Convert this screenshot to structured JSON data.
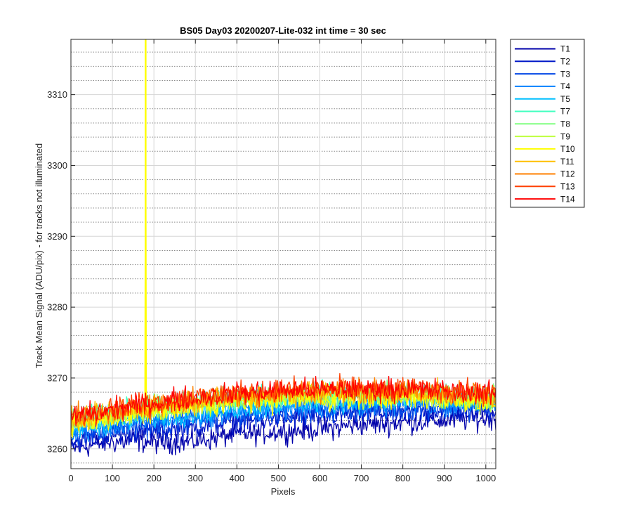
{
  "chart_data": {
    "type": "line",
    "title": "BS05 Day03 20200207-Lite-032 int time = 30 sec",
    "xlabel": "Pixels",
    "ylabel": "Track Mean Signal (ADU/pix) - for tracks not illuminated",
    "xlim": [
      0,
      1024
    ],
    "ylim": [
      3257.2,
      3317.8
    ],
    "xticks": [
      0,
      100,
      200,
      300,
      400,
      500,
      600,
      700,
      800,
      900,
      1000
    ],
    "yticks": [
      3260,
      3270,
      3280,
      3290,
      3300,
      3310
    ],
    "minor_grid": "dotted, step 2 on y",
    "grid": true,
    "legend_position": "outside-right-top",
    "x": [
      0,
      32,
      64,
      96,
      128,
      160,
      192,
      224,
      256,
      288,
      320,
      352,
      384,
      416,
      448,
      480,
      512,
      544,
      576,
      608,
      640,
      672,
      704,
      736,
      768,
      800,
      832,
      864,
      896,
      928,
      960,
      992,
      1024
    ],
    "series": [
      {
        "name": "T1",
        "color": "#0000aa",
        "values": [
          3260.0,
          3260.3,
          3260.7,
          3261.0,
          3261.0,
          3261.2,
          3261.0,
          3260.9,
          3261.0,
          3261.0,
          3261.3,
          3261.6,
          3262.0,
          3262.1,
          3262.2,
          3262.4,
          3262.5,
          3262.6,
          3262.7,
          3262.9,
          3263.0,
          3263.3,
          3263.5,
          3263.5,
          3263.6,
          3263.8,
          3263.8,
          3264.0,
          3264.0,
          3264.1,
          3264.2,
          3264.3,
          3264.3
        ]
      },
      {
        "name": "T2",
        "color": "#0018c8",
        "values": [
          3261.0,
          3261.3,
          3261.7,
          3262.0,
          3262.2,
          3262.4,
          3262.5,
          3262.6,
          3262.8,
          3263.0,
          3263.3,
          3263.6,
          3263.9,
          3264.0,
          3264.1,
          3264.2,
          3264.3,
          3264.4,
          3264.5,
          3264.6,
          3264.8,
          3264.9,
          3265.0,
          3265.0,
          3265.0,
          3265.1,
          3265.2,
          3265.2,
          3265.3,
          3265.3,
          3265.3,
          3265.4,
          3265.4
        ]
      },
      {
        "name": "T3",
        "color": "#0045e6",
        "values": [
          3261.8,
          3262.1,
          3262.5,
          3262.8,
          3263.0,
          3263.2,
          3263.4,
          3263.6,
          3263.8,
          3264.0,
          3264.2,
          3264.4,
          3264.6,
          3264.8,
          3265.0,
          3265.1,
          3265.2,
          3265.3,
          3265.4,
          3265.4,
          3265.5,
          3265.6,
          3265.7,
          3265.7,
          3265.7,
          3265.7,
          3265.7,
          3265.8,
          3265.8,
          3265.8,
          3265.8,
          3265.9,
          3265.9
        ]
      },
      {
        "name": "T4",
        "color": "#0080ff",
        "values": [
          3262.3,
          3262.6,
          3263.0,
          3263.3,
          3263.5,
          3263.7,
          3263.9,
          3264.1,
          3264.3,
          3264.5,
          3264.7,
          3264.9,
          3265.1,
          3265.3,
          3265.5,
          3265.6,
          3265.7,
          3265.8,
          3265.9,
          3265.9,
          3266.0,
          3266.1,
          3266.2,
          3266.2,
          3266.2,
          3266.2,
          3266.3,
          3266.3,
          3266.3,
          3266.3,
          3266.3,
          3266.4,
          3266.4
        ]
      },
      {
        "name": "T5",
        "color": "#00bfff",
        "values": [
          3262.8,
          3263.1,
          3263.5,
          3263.8,
          3264.0,
          3264.2,
          3264.4,
          3264.6,
          3264.8,
          3265.0,
          3265.2,
          3265.4,
          3265.6,
          3265.8,
          3266.0,
          3266.1,
          3266.2,
          3266.3,
          3266.4,
          3266.4,
          3266.5,
          3266.6,
          3266.7,
          3266.7,
          3266.7,
          3266.7,
          3266.8,
          3266.8,
          3266.8,
          3266.8,
          3266.8,
          3266.9,
          3266.9
        ]
      },
      {
        "name": "T7",
        "color": "#40ffbf",
        "values": [
          3264.0,
          3264.3,
          3264.7,
          3265.0,
          3265.3,
          3265.6,
          3265.9,
          3266.1,
          3266.4,
          3266.6,
          3266.8,
          3267.0,
          3267.2,
          3267.4,
          3267.5,
          3267.6,
          3267.7,
          3267.8,
          3267.8,
          3267.8,
          3267.9,
          3267.9,
          3267.9,
          3267.9,
          3267.9,
          3267.9,
          3267.8,
          3267.8,
          3267.7,
          3267.6,
          3267.5,
          3267.4,
          3267.3
        ]
      },
      {
        "name": "T8",
        "color": "#80ff80",
        "values": [
          3263.8,
          3264.1,
          3264.5,
          3264.8,
          3265.1,
          3265.4,
          3265.7,
          3265.9,
          3266.2,
          3266.4,
          3266.6,
          3266.8,
          3267.0,
          3267.2,
          3267.3,
          3267.4,
          3267.5,
          3267.6,
          3267.6,
          3267.6,
          3267.7,
          3267.7,
          3267.7,
          3267.7,
          3267.7,
          3267.7,
          3267.6,
          3267.6,
          3267.5,
          3267.4,
          3267.3,
          3267.2,
          3267.1
        ]
      },
      {
        "name": "T9",
        "color": "#bfff40",
        "values": [
          3263.5,
          3263.8,
          3264.2,
          3264.5,
          3264.8,
          3265.1,
          3265.4,
          3265.6,
          3265.9,
          3266.1,
          3266.3,
          3266.5,
          3266.7,
          3266.9,
          3267.0,
          3267.1,
          3267.2,
          3267.3,
          3267.3,
          3267.3,
          3267.4,
          3267.4,
          3267.4,
          3267.4,
          3267.4,
          3267.4,
          3267.3,
          3267.3,
          3267.2,
          3267.1,
          3267.0,
          3266.9,
          3266.8
        ]
      },
      {
        "name": "T10",
        "color": "#ffff00",
        "values": [
          3263.3,
          3263.6,
          3264.0,
          3264.3,
          3264.6,
          3264.9,
          3265.2,
          3265.4,
          3265.7,
          3265.9,
          3266.1,
          3266.3,
          3266.5,
          3266.7,
          3266.8,
          3266.9,
          3267.0,
          3267.1,
          3267.1,
          3267.1,
          3267.2,
          3267.2,
          3267.2,
          3267.2,
          3267.2,
          3267.2,
          3267.1,
          3267.1,
          3267.0,
          3266.9,
          3266.8,
          3266.7,
          3266.6
        ],
        "spike": {
          "x": 180,
          "y": 3318
        }
      },
      {
        "name": "T11",
        "color": "#ffbf00",
        "values": [
          3264.0,
          3264.3,
          3264.7,
          3265.0,
          3265.3,
          3265.6,
          3265.9,
          3266.1,
          3266.4,
          3266.6,
          3266.8,
          3267.0,
          3267.2,
          3267.4,
          3267.5,
          3267.6,
          3267.7,
          3267.8,
          3267.8,
          3267.8,
          3267.9,
          3267.9,
          3267.9,
          3267.9,
          3267.9,
          3267.9,
          3267.8,
          3267.8,
          3267.7,
          3267.6,
          3267.5,
          3267.4,
          3267.3
        ]
      },
      {
        "name": "T12",
        "color": "#ff8000",
        "values": [
          3264.3,
          3264.6,
          3265.0,
          3265.3,
          3265.6,
          3265.9,
          3266.2,
          3266.4,
          3266.7,
          3266.9,
          3267.1,
          3267.3,
          3267.5,
          3267.7,
          3267.8,
          3267.9,
          3268.0,
          3268.1,
          3268.1,
          3268.1,
          3268.2,
          3268.2,
          3268.2,
          3268.2,
          3268.2,
          3268.2,
          3268.1,
          3268.1,
          3268.0,
          3267.9,
          3267.8,
          3267.7,
          3267.6
        ]
      },
      {
        "name": "T13",
        "color": "#ff4000",
        "values": [
          3264.6,
          3264.9,
          3265.3,
          3265.6,
          3265.9,
          3266.2,
          3266.5,
          3266.7,
          3267.0,
          3267.2,
          3267.4,
          3267.6,
          3267.8,
          3268.0,
          3268.1,
          3268.2,
          3268.3,
          3268.4,
          3268.4,
          3268.4,
          3268.5,
          3268.5,
          3268.5,
          3268.5,
          3268.5,
          3268.5,
          3268.4,
          3268.4,
          3268.3,
          3268.2,
          3268.1,
          3268.0,
          3267.9
        ]
      },
      {
        "name": "T14",
        "color": "#ff0000",
        "values": [
          3264.5,
          3264.8,
          3265.2,
          3265.5,
          3265.8,
          3266.1,
          3266.4,
          3266.6,
          3266.9,
          3267.1,
          3267.3,
          3267.5,
          3267.7,
          3267.9,
          3268.0,
          3268.1,
          3268.2,
          3268.3,
          3268.3,
          3268.3,
          3268.4,
          3268.4,
          3268.4,
          3268.4,
          3268.4,
          3268.4,
          3268.3,
          3268.3,
          3268.2,
          3268.1,
          3268.0,
          3267.9,
          3267.8
        ]
      }
    ]
  }
}
